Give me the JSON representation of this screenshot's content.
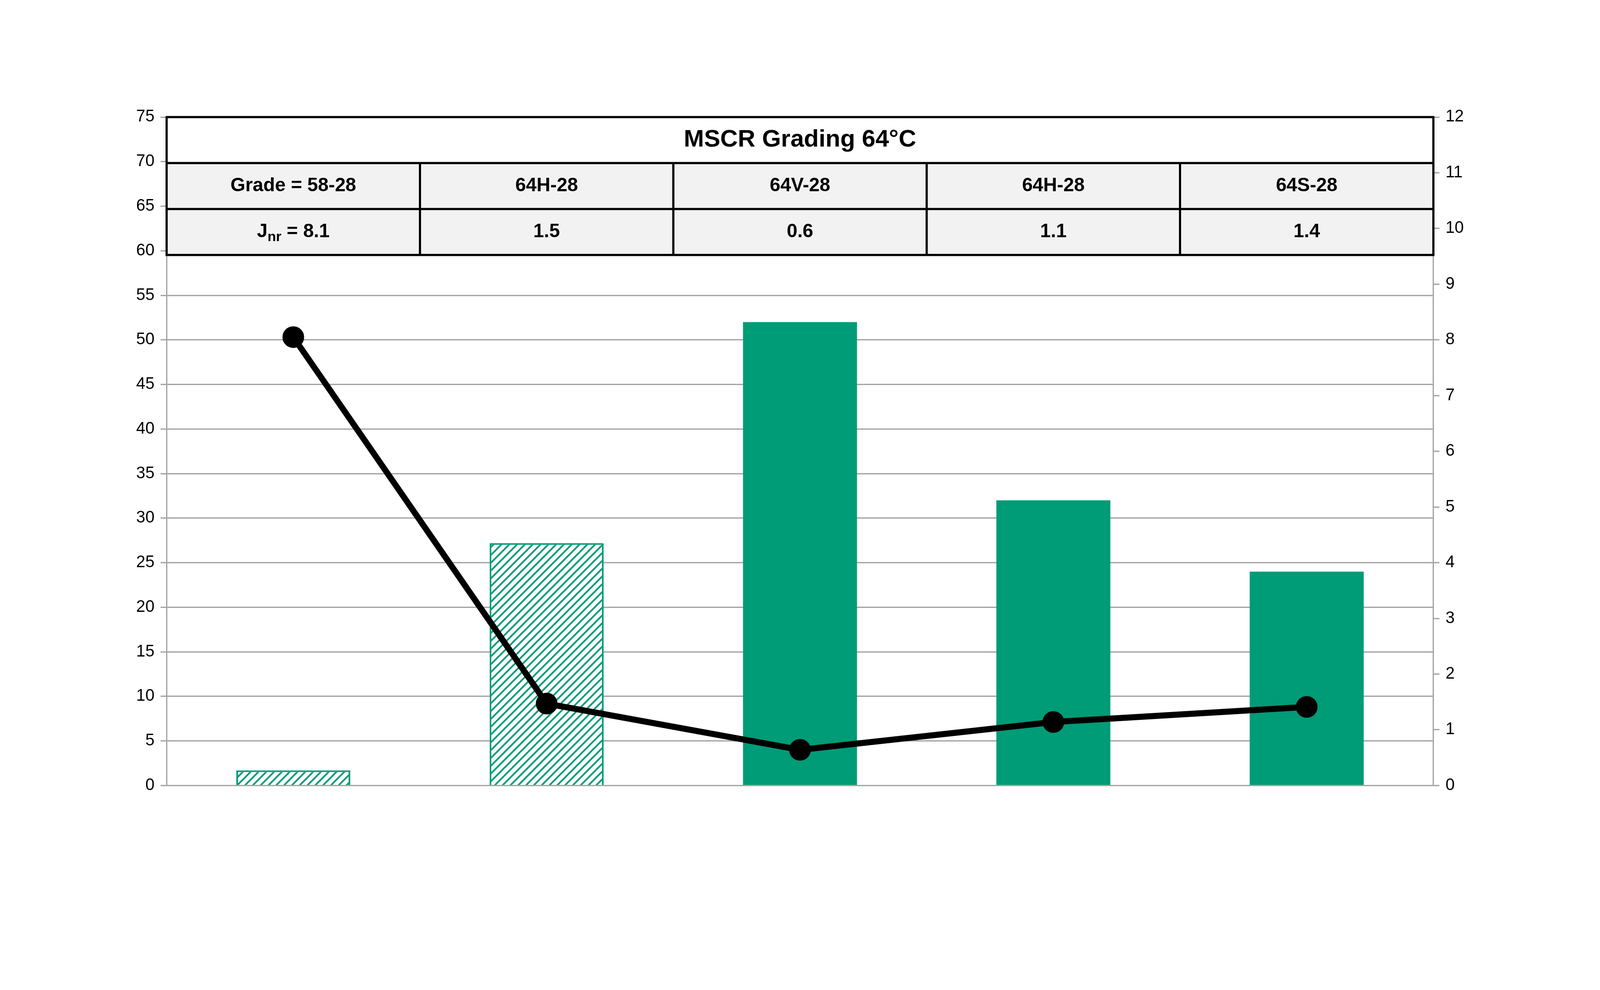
{
  "chart_data": {
    "type": "bar",
    "categories": [
      null,
      null,
      null,
      null,
      null
    ],
    "table": {
      "title": "MSCR Grading 64°C",
      "rows": [
        [
          "Grade = 58-28",
          "64H-28",
          "64V-28",
          "64H-28",
          "64S-28"
        ],
        [
          [
            {
              "text": "J"
            },
            {
              "text": "nr",
              "sub": true
            },
            {
              "text": " = 8.1"
            }
          ],
          "1.5",
          "0.6",
          "1.1",
          "1.4"
        ]
      ]
    },
    "series": [
      {
        "type": "bar",
        "color": "#009b77",
        "marker": "hatch",
        "values": [
          1.7,
          27.2,
          null,
          null,
          null
        ]
      },
      {
        "type": "bar",
        "color": "#009b77",
        "marker": "solid",
        "values": [
          null,
          null,
          52,
          32,
          24
        ]
      },
      {
        "type": "line",
        "color": "#000000",
        "marker": "circle",
        "axis": "y2",
        "values": [
          8.05,
          1.47,
          0.64,
          1.14,
          1.41
        ]
      }
    ],
    "ylim": [
      0,
      75
    ],
    "yticks": [
      0,
      5,
      10,
      15,
      20,
      25,
      30,
      35,
      40,
      45,
      50,
      55,
      60,
      65,
      70,
      75
    ],
    "y2lim": [
      0,
      12
    ],
    "y2ticks": [
      0,
      1,
      2,
      3,
      4,
      5,
      6,
      7,
      8,
      9,
      10,
      11,
      12
    ],
    "grid": true
  }
}
